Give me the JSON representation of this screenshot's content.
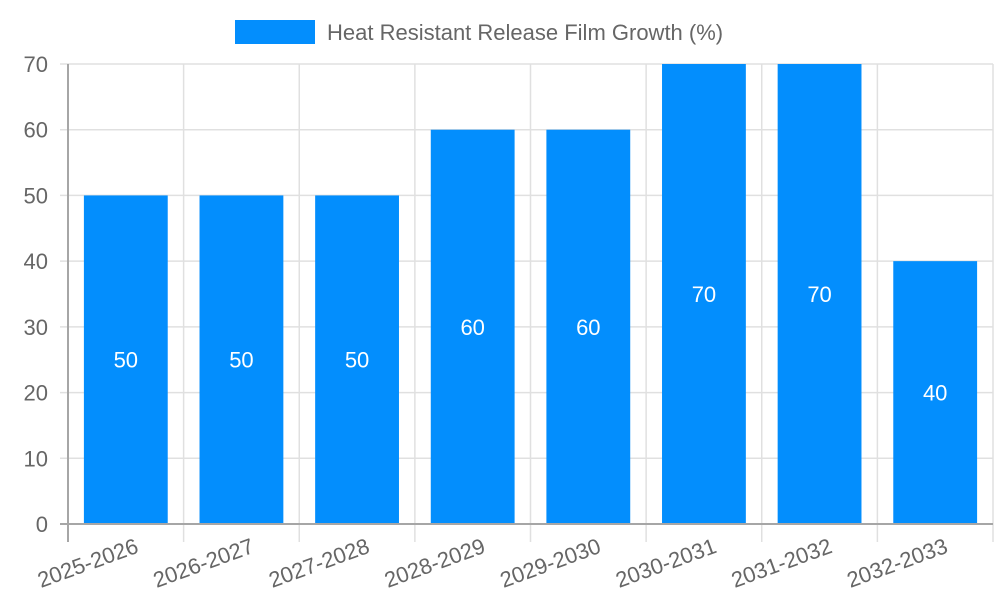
{
  "legend": {
    "label": "Heat Resistant Release Film Growth (%)",
    "color": "#038efd"
  },
  "colors": {
    "bar": "#038efd",
    "grid": "#e0e0e0",
    "axis": "#a6a6a6",
    "text": "#666666",
    "bar_label": "#ffffff"
  },
  "chart_data": {
    "type": "bar",
    "title": "",
    "xlabel": "",
    "ylabel": "",
    "categories": [
      "2025-2026",
      "2026-2027",
      "2027-2028",
      "2028-2029",
      "2029-2030",
      "2030-2031",
      "2031-2032",
      "2032-2033"
    ],
    "series": [
      {
        "name": "Heat Resistant Release Film Growth (%)",
        "values": [
          50,
          50,
          50,
          60,
          60,
          70,
          70,
          40
        ],
        "color": "#038efd"
      }
    ],
    "ylim": [
      0,
      70
    ],
    "yticks": [
      0,
      10,
      20,
      30,
      40,
      50,
      60,
      70
    ],
    "grid": true,
    "legend_position": "top",
    "data_labels": true,
    "x_tick_rotation": -20
  }
}
